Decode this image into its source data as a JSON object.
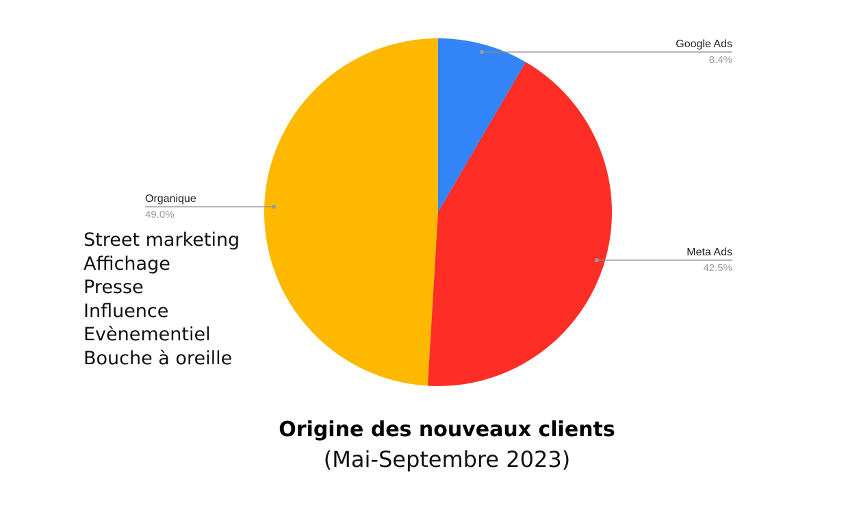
{
  "chart_data": {
    "type": "pie",
    "title": "Origine des nouveaux clients",
    "subtitle": "(Mai-Septembre 2023)",
    "slices": [
      {
        "label": "Google Ads",
        "value": 8.4,
        "value_label": "8.4%",
        "color": "#3385f7"
      },
      {
        "label": "Meta Ads",
        "value": 42.5,
        "value_label": "42.5%",
        "color": "#fe2d26"
      },
      {
        "label": "Organique",
        "value": 49.0,
        "value_label": "49.0%",
        "color": "#ffb800"
      }
    ],
    "start_angle": "top",
    "direction": "clockwise",
    "legend": "none"
  },
  "annotation": {
    "items": [
      "Street marketing",
      "Affichage",
      "Presse",
      "Influence",
      "Evènementiel",
      "Bouche à oreille"
    ]
  }
}
